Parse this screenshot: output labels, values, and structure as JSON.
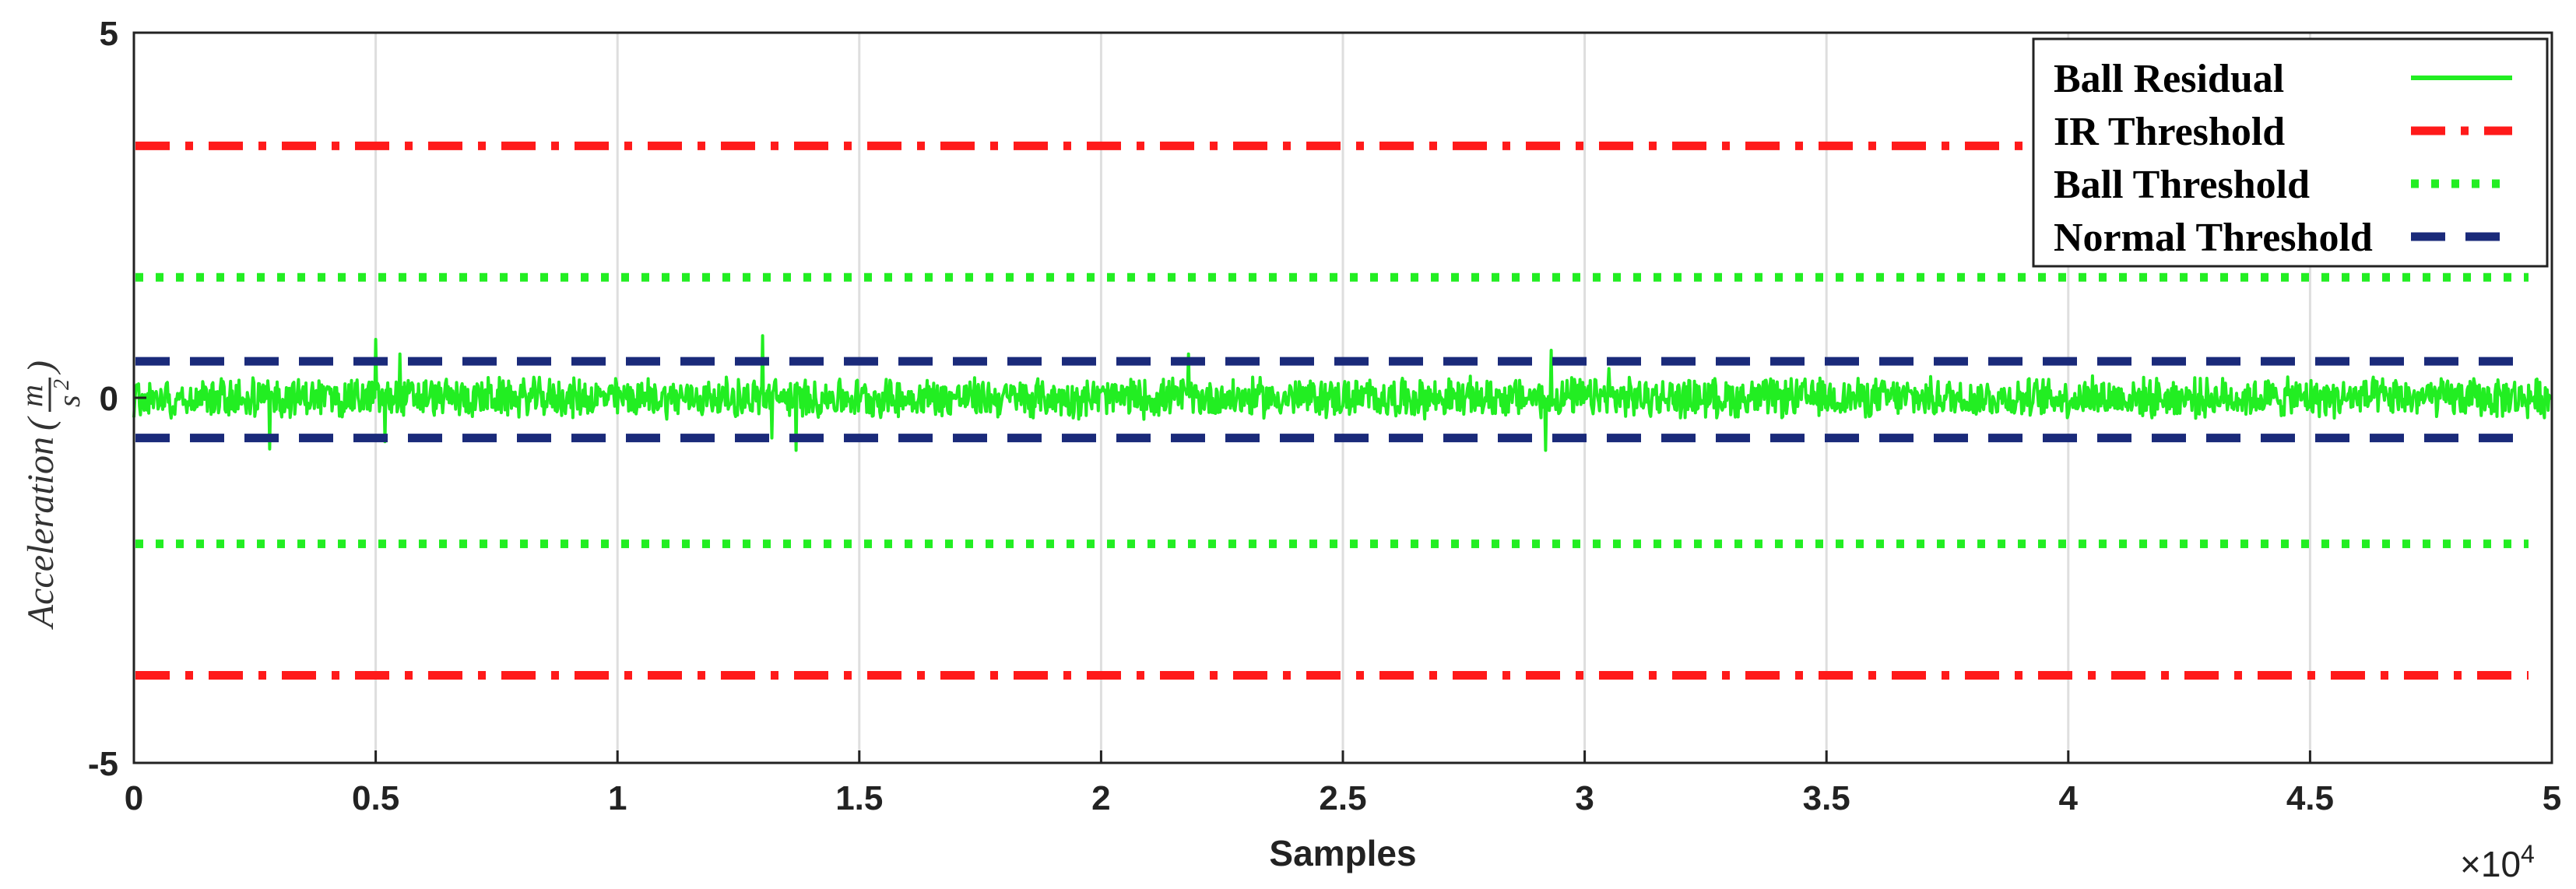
{
  "chart_data": {
    "type": "line",
    "xlabel": "Samples",
    "x_multiplier": "×10",
    "x_multiplier_exp": "4",
    "ylabel": "Acceleration",
    "ylabel_unit": {
      "num": "m",
      "den": "s",
      "den_exp": "2"
    },
    "xlim": [
      0,
      5
    ],
    "ylim": [
      -5,
      5
    ],
    "xticks": [
      0,
      0.5,
      1,
      1.5,
      2,
      2.5,
      3,
      3.5,
      4,
      4.5,
      5
    ],
    "xtick_labels": [
      "0",
      "0.5",
      "1",
      "1.5",
      "2",
      "2.5",
      "3",
      "3.5",
      "4",
      "4.5",
      "5"
    ],
    "yticks": [
      5,
      0,
      -5
    ],
    "ytick_labels": [
      "5",
      "0",
      "-5"
    ],
    "grid": "vertical",
    "legend_position": "top-right",
    "series": [
      {
        "name": "Ball Residual",
        "style": "solid",
        "color": "#22ee22",
        "noise": {
          "amplitude": 0.3,
          "max": 0.8,
          "min": -0.75
        },
        "spikes": [
          {
            "x": 0.5,
            "y": 0.8
          },
          {
            "x": 0.52,
            "y": -0.6
          },
          {
            "x": 0.55,
            "y": 0.6
          },
          {
            "x": 1.3,
            "y": 0.85
          },
          {
            "x": 1.32,
            "y": -0.55
          },
          {
            "x": 1.37,
            "y": 0.7
          },
          {
            "x": 0.28,
            "y": -0.7
          },
          {
            "x": 1.37,
            "y": -0.72
          },
          {
            "x": 2.18,
            "y": 0.6
          },
          {
            "x": 2.93,
            "y": 0.65
          },
          {
            "x": 2.92,
            "y": -0.72
          },
          {
            "x": 3.05,
            "y": 0.4
          },
          {
            "x": 4.05,
            "y": 0.3
          }
        ]
      },
      {
        "name": "IR Threshold",
        "style": "dashdot",
        "color": "#ff1a1a",
        "y": [
          3.45,
          -3.8
        ]
      },
      {
        "name": "Ball Threshold",
        "style": "dotted",
        "color": "#22ee22",
        "y": [
          1.65,
          -2.0
        ]
      },
      {
        "name": "Normal Threshold",
        "style": "dashed",
        "color": "#1a2a7a",
        "y": [
          0.5,
          -0.55
        ]
      }
    ]
  }
}
